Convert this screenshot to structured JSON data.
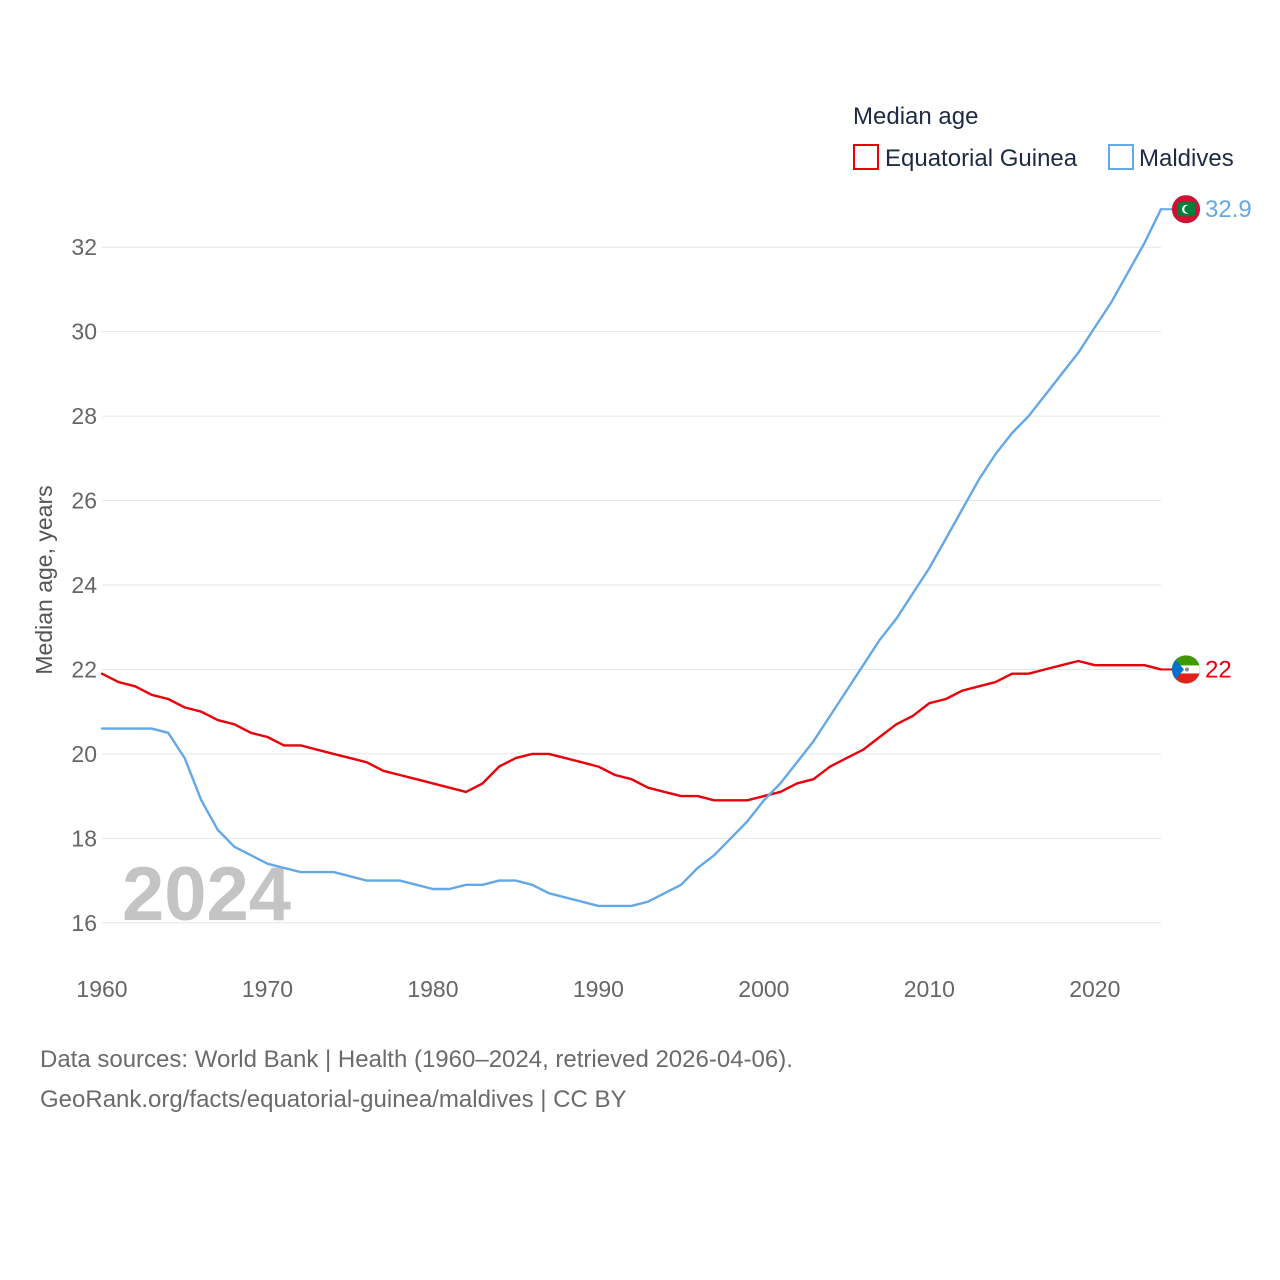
{
  "chart_data": {
    "type": "line",
    "legend_title": "Median age",
    "ylabel": "Median age, years",
    "xlim": [
      1960,
      2024
    ],
    "ylim": [
      15,
      33
    ],
    "yticks": [
      16,
      18,
      20,
      22,
      24,
      26,
      28,
      30,
      32
    ],
    "xticks": [
      1960,
      1970,
      1980,
      1990,
      2000,
      2010,
      2020
    ],
    "year_label": "2024",
    "legend_position": "top-right",
    "series": [
      {
        "name": "Equatorial Guinea",
        "color": "#e8000b",
        "end_label": "22",
        "flag": "equatorial-guinea-flag",
        "x": [
          1960,
          1961,
          1962,
          1963,
          1964,
          1965,
          1966,
          1967,
          1968,
          1969,
          1970,
          1971,
          1972,
          1973,
          1974,
          1975,
          1976,
          1977,
          1978,
          1979,
          1980,
          1981,
          1982,
          1983,
          1984,
          1985,
          1986,
          1987,
          1988,
          1989,
          1990,
          1991,
          1992,
          1993,
          1994,
          1995,
          1996,
          1997,
          1998,
          1999,
          2000,
          2001,
          2002,
          2003,
          2004,
          2005,
          2006,
          2007,
          2008,
          2009,
          2010,
          2011,
          2012,
          2013,
          2014,
          2015,
          2016,
          2017,
          2018,
          2019,
          2020,
          2021,
          2022,
          2023,
          2024
        ],
        "values": [
          21.9,
          21.7,
          21.6,
          21.4,
          21.3,
          21.1,
          21.0,
          20.8,
          20.7,
          20.5,
          20.4,
          20.2,
          20.2,
          20.1,
          20.0,
          19.9,
          19.8,
          19.6,
          19.5,
          19.4,
          19.3,
          19.2,
          19.1,
          19.3,
          19.7,
          19.9,
          20.0,
          20.0,
          19.9,
          19.8,
          19.7,
          19.5,
          19.4,
          19.2,
          19.1,
          19.0,
          19.0,
          18.9,
          18.9,
          18.9,
          19.0,
          19.1,
          19.3,
          19.4,
          19.7,
          19.9,
          20.1,
          20.4,
          20.7,
          20.9,
          21.2,
          21.3,
          21.5,
          21.6,
          21.7,
          21.9,
          21.9,
          22.0,
          22.1,
          22.2,
          22.1,
          22.1,
          22.1,
          22.1,
          22.0
        ]
      },
      {
        "name": "Maldives",
        "color": "#64a8e6",
        "end_label": "32.9",
        "flag": "maldives-flag",
        "x": [
          1960,
          1961,
          1962,
          1963,
          1964,
          1965,
          1966,
          1967,
          1968,
          1969,
          1970,
          1971,
          1972,
          1973,
          1974,
          1975,
          1976,
          1977,
          1978,
          1979,
          1980,
          1981,
          1982,
          1983,
          1984,
          1985,
          1986,
          1987,
          1988,
          1989,
          1990,
          1991,
          1992,
          1993,
          1994,
          1995,
          1996,
          1997,
          1998,
          1999,
          2000,
          2001,
          2002,
          2003,
          2004,
          2005,
          2006,
          2007,
          2008,
          2009,
          2010,
          2011,
          2012,
          2013,
          2014,
          2015,
          2016,
          2017,
          2018,
          2019,
          2020,
          2021,
          2022,
          2023,
          2024
        ],
        "values": [
          20.6,
          20.6,
          20.6,
          20.6,
          20.5,
          19.9,
          18.9,
          18.2,
          17.8,
          17.6,
          17.4,
          17.3,
          17.2,
          17.2,
          17.2,
          17.1,
          17.0,
          17.0,
          17.0,
          16.9,
          16.8,
          16.8,
          16.9,
          16.9,
          17.0,
          17.0,
          16.9,
          16.7,
          16.6,
          16.5,
          16.4,
          16.4,
          16.4,
          16.5,
          16.7,
          16.9,
          17.3,
          17.6,
          18.0,
          18.4,
          18.9,
          19.3,
          19.8,
          20.3,
          20.9,
          21.5,
          22.1,
          22.7,
          23.2,
          23.8,
          24.4,
          25.1,
          25.8,
          26.5,
          27.1,
          27.6,
          28.0,
          28.5,
          29.0,
          29.5,
          30.1,
          30.7,
          31.4,
          32.1,
          32.9
        ]
      }
    ]
  },
  "footer": {
    "line1": "Data sources: World Bank | Health (1960–2024, retrieved 2026-04-06).",
    "line2": "GeoRank.org/facts/equatorial-guinea/maldives | CC BY"
  }
}
